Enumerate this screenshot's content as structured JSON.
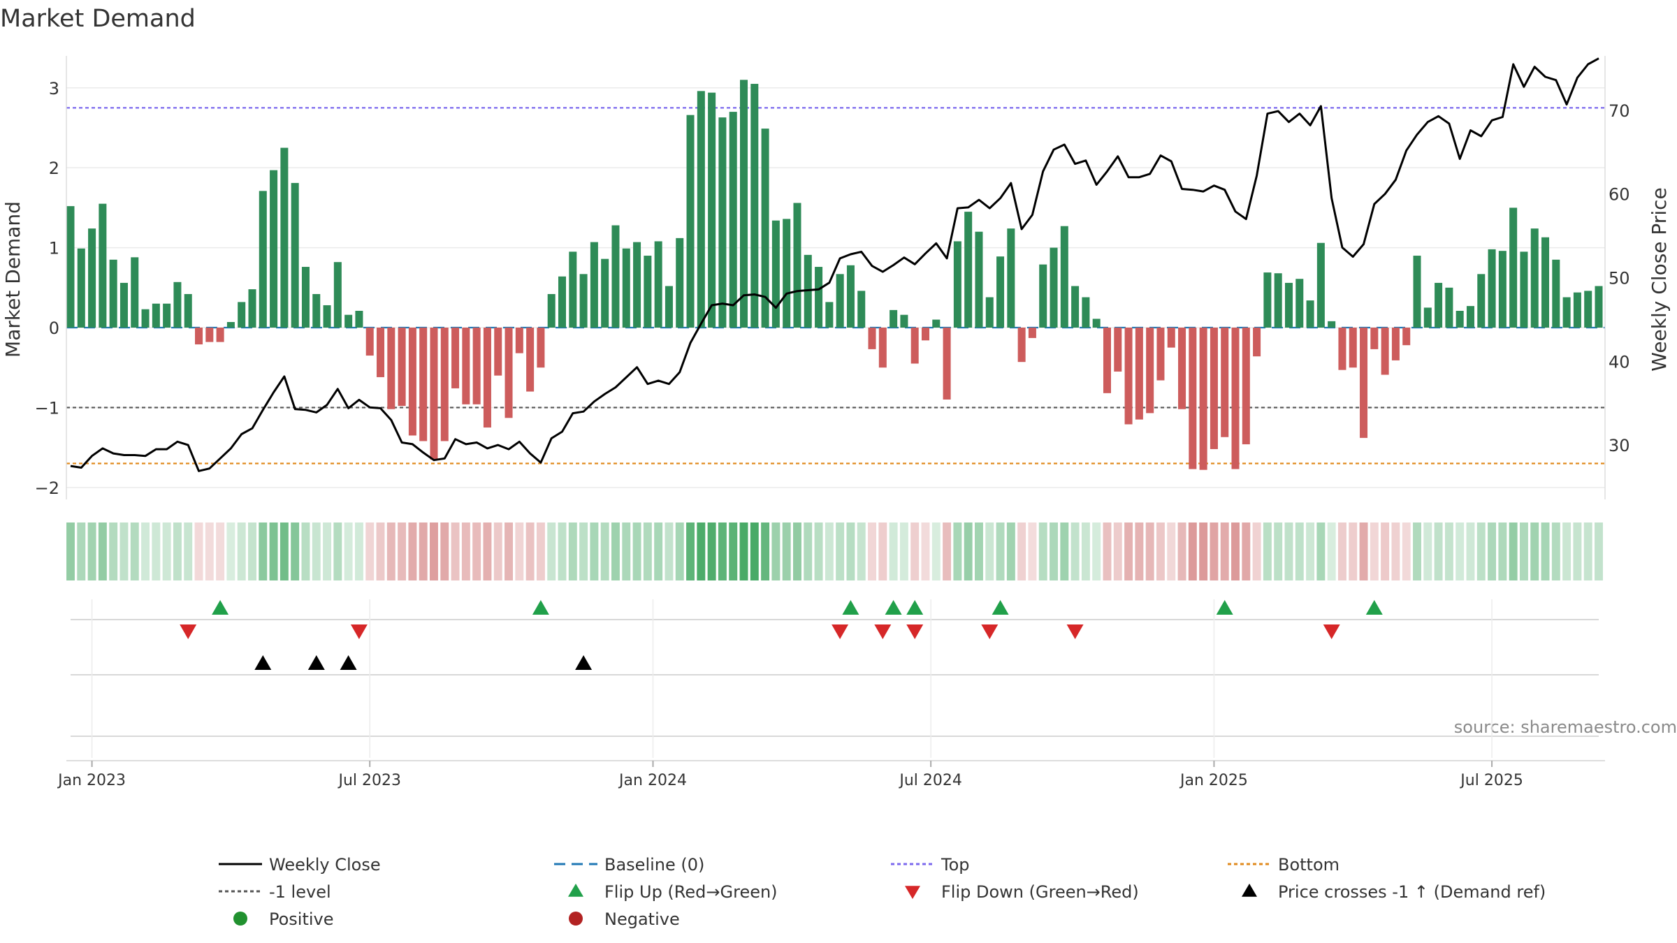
{
  "chart_data": {
    "type": "bar",
    "title": "Market Demand",
    "ylabel_left": "Market Demand",
    "ylabel_right": "Weekly Close Price",
    "source_note": "source: sharemaestro.com",
    "ylim_left": [
      -2.15,
      3.4
    ],
    "ylim_right": [
      23.5,
      76.5
    ],
    "yticks_left": [
      {
        "value": -2,
        "label": "−2"
      },
      {
        "value": -1,
        "label": "−1"
      },
      {
        "value": 0,
        "label": "0"
      },
      {
        "value": 1,
        "label": "1"
      },
      {
        "value": 2,
        "label": "2"
      },
      {
        "value": 3,
        "label": "3"
      }
    ],
    "yticks_right": [
      {
        "value": 30,
        "label": "30"
      },
      {
        "value": 40,
        "label": "40"
      },
      {
        "value": 50,
        "label": "50"
      },
      {
        "value": 60,
        "label": "60"
      },
      {
        "value": 70,
        "label": "70"
      }
    ],
    "xticks": [
      {
        "week": 2,
        "label": "Jan 2023"
      },
      {
        "week": 28,
        "label": "Jul 2023"
      },
      {
        "week": 54.5,
        "label": "Jan 2024"
      },
      {
        "week": 80.5,
        "label": "Jul 2024"
      },
      {
        "week": 107,
        "label": "Jan 2025"
      },
      {
        "week": 133,
        "label": "Jul 2025"
      }
    ],
    "reference_lines": {
      "top": 2.75,
      "bottom": -1.7,
      "minus_one_level": -1,
      "baseline": 0
    },
    "demand": [
      1.52,
      0.99,
      1.24,
      1.55,
      0.85,
      0.56,
      0.88,
      0.23,
      0.3,
      0.3,
      0.57,
      0.42,
      -0.21,
      -0.18,
      -0.18,
      0.07,
      0.32,
      0.48,
      1.71,
      1.97,
      2.25,
      1.81,
      0.76,
      0.42,
      0.28,
      0.82,
      0.16,
      0.21,
      -0.35,
      -0.62,
      -1.02,
      -0.98,
      -1.35,
      -1.42,
      -1.65,
      -1.42,
      -0.76,
      -0.96,
      -0.96,
      -1.25,
      -0.6,
      -1.13,
      -0.32,
      -0.8,
      -0.5,
      0.42,
      0.64,
      0.95,
      0.67,
      1.07,
      0.86,
      1.28,
      0.99,
      1.07,
      0.9,
      1.08,
      0.52,
      1.12,
      2.66,
      2.96,
      2.94,
      2.63,
      2.7,
      3.1,
      3.05,
      2.49,
      1.34,
      1.36,
      1.56,
      0.91,
      0.76,
      0.32,
      0.67,
      0.78,
      0.46,
      -0.27,
      -0.5,
      0.22,
      0.16,
      -0.45,
      -0.16,
      0.1,
      -0.9,
      1.08,
      1.45,
      1.2,
      0.38,
      0.89,
      1.24,
      -0.43,
      -0.13,
      0.79,
      1.0,
      1.27,
      0.52,
      0.38,
      0.11,
      -0.82,
      -0.55,
      -1.21,
      -1.15,
      -1.07,
      -0.66,
      -0.25,
      -1.02,
      -1.77,
      -1.78,
      -1.52,
      -1.37,
      -1.77,
      -1.46,
      -0.36,
      0.69,
      0.68,
      0.56,
      0.61,
      0.34,
      1.06,
      0.08,
      -0.53,
      -0.5,
      -1.38,
      -0.27,
      -0.59,
      -0.41,
      -0.22,
      0.9,
      0.25,
      0.56,
      0.5,
      0.21,
      0.27,
      0.67,
      0.98,
      0.96,
      1.5,
      0.95,
      1.24,
      1.13,
      0.85,
      0.38,
      0.44,
      0.46,
      0.52
    ],
    "weekly_close": [
      27.5,
      27.3,
      28.7,
      29.6,
      29.0,
      28.8,
      28.8,
      28.7,
      29.5,
      29.5,
      30.4,
      30.0,
      26.9,
      27.2,
      28.4,
      29.6,
      31.3,
      32.0,
      34.2,
      36.3,
      38.2,
      34.3,
      34.2,
      33.9,
      34.8,
      36.7,
      34.4,
      35.4,
      34.5,
      34.4,
      33.0,
      30.3,
      30.1,
      29.1,
      28.2,
      28.4,
      30.7,
      30.1,
      30.3,
      29.6,
      30.0,
      29.5,
      30.4,
      29.0,
      27.9,
      30.8,
      31.6,
      33.8,
      34.0,
      35.2,
      36.1,
      36.9,
      38.1,
      39.3,
      37.3,
      37.7,
      37.3,
      38.7,
      42.2,
      44.5,
      46.7,
      46.9,
      46.7,
      47.9,
      48.0,
      47.7,
      46.4,
      48.1,
      48.4,
      48.5,
      48.6,
      49.4,
      52.3,
      52.8,
      53.1,
      51.4,
      50.7,
      51.5,
      52.4,
      51.6,
      52.9,
      54.1,
      52.3,
      58.3,
      58.4,
      59.3,
      58.3,
      59.5,
      61.3,
      55.8,
      57.5,
      62.7,
      65.3,
      65.9,
      63.6,
      64.0,
      61.1,
      62.7,
      64.5,
      62.0,
      62.0,
      62.4,
      64.6,
      63.9,
      60.6,
      60.5,
      60.3,
      61.0,
      60.5,
      57.9,
      57.0,
      62.2,
      69.6,
      69.9,
      68.6,
      69.6,
      68.2,
      70.5,
      59.5,
      53.6,
      52.5,
      54.0,
      58.8,
      60.0,
      61.7,
      65.2,
      67.1,
      68.6,
      69.3,
      68.4,
      64.2,
      67.6,
      66.9,
      68.8,
      69.2,
      75.5,
      72.8,
      75.2,
      74.0,
      73.6,
      70.7,
      73.9,
      75.5,
      76.2
    ],
    "flip_up_weeks": [
      14,
      44,
      73,
      77,
      79,
      87,
      108,
      122
    ],
    "flip_down_weeks": [
      11,
      27,
      72,
      76,
      79,
      86,
      94,
      118
    ],
    "price_cross_weeks": [
      18,
      23,
      26,
      48
    ],
    "legend": [
      {
        "label": "Weekly Close",
        "icon": "solid-line",
        "color": "#000000"
      },
      {
        "label": "Baseline (0)",
        "icon": "dashed-line",
        "color": "#1f77b4"
      },
      {
        "label": "Top",
        "icon": "dotted-line",
        "color": "#7b68ee"
      },
      {
        "label": "Bottom",
        "icon": "dotted-line",
        "color": "#e08a1e"
      },
      {
        "label": "-1 level",
        "icon": "dotted-line",
        "color": "#555555"
      },
      {
        "label": "Flip Up (Red→Green)",
        "icon": "triangle-up",
        "color": "#21a04a"
      },
      {
        "label": "Flip Down (Green→Red)",
        "icon": "triangle-down",
        "color": "#d62728"
      },
      {
        "label": "Price crosses -1 ↑ (Demand ref)",
        "icon": "triangle-up",
        "color": "#000000"
      },
      {
        "label": "Positive",
        "icon": "circle",
        "color": "#21912f"
      },
      {
        "label": "Negative",
        "icon": "circle",
        "color": "#b22222"
      }
    ],
    "colors": {
      "positive_bar": "#2e8b57",
      "negative_bar": "#cd5c5c",
      "price_line": "#000000",
      "strip_positive": "#3aa35a",
      "strip_negative": "#c65a5a"
    }
  }
}
